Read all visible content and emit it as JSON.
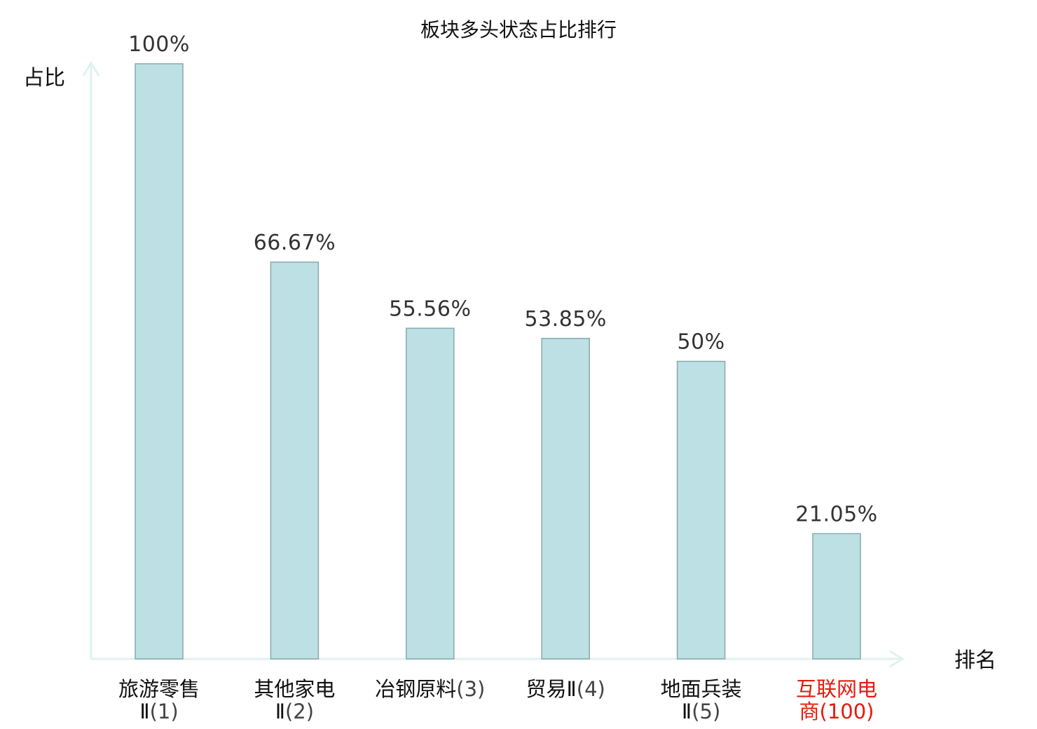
{
  "chart_data": {
    "type": "bar",
    "title": "板块多头状态占比排行",
    "ylabel": "占比",
    "xlabel": "排名",
    "ylim": [
      0,
      100
    ],
    "grid": false,
    "categories": [
      {
        "name_lines": [
          "旅游零售",
          "Ⅱ"
        ],
        "rank": "(1)",
        "highlight": false
      },
      {
        "name_lines": [
          "其他家电",
          "Ⅱ"
        ],
        "rank": "(2)",
        "highlight": false
      },
      {
        "name_lines": [
          "冶钢原料"
        ],
        "rank": "(3)",
        "highlight": false
      },
      {
        "name_lines": [
          "贸易Ⅱ"
        ],
        "rank": "(4)",
        "highlight": false
      },
      {
        "name_lines": [
          "地面兵装",
          "Ⅱ"
        ],
        "rank": "(5)",
        "highlight": false
      },
      {
        "name_lines": [
          "互联网电",
          "商"
        ],
        "rank": "(100)",
        "highlight": true
      }
    ],
    "values": [
      100,
      66.67,
      55.56,
      53.85,
      50,
      21.05
    ],
    "value_labels": [
      "100%",
      "66.67%",
      "55.56%",
      "53.85%",
      "50%",
      "21.05%"
    ],
    "colors": {
      "bar_fill": "#bce0e3",
      "bar_stroke": "#86a9ad",
      "axis": "#dff2ef",
      "highlight_text": "#e8190f"
    }
  }
}
